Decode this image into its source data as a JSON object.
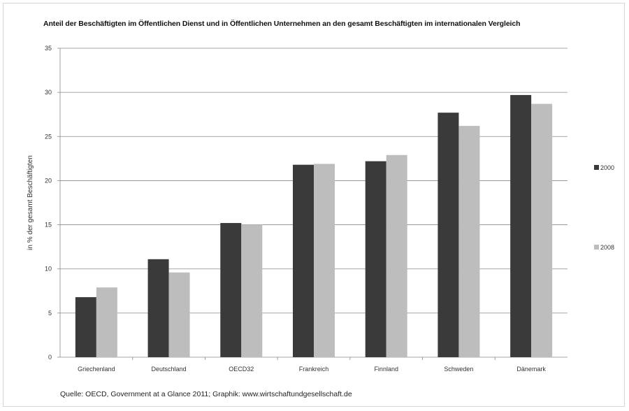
{
  "chart_data": {
    "type": "bar",
    "title": "Anteil der Beschäftigten im Öffentlichen Dienst und in Öffentlichen Unternehmen an den gesamt Beschäftigten im internationalen Vergleich",
    "xlabel": "",
    "ylabel": "in % der gesamt Beschäftigten",
    "ylim": [
      0,
      35
    ],
    "yticks": [
      "0",
      "5",
      "10",
      "15",
      "20",
      "25",
      "30",
      "35"
    ],
    "grid": true,
    "legend_position": "right",
    "categories": [
      "Griechenland",
      "Deutschland",
      "OECD32",
      "Frankreich",
      "Finnland",
      "Schweden",
      "Dänemark"
    ],
    "series": [
      {
        "name": "2000",
        "color": "#3a3a3a",
        "values": [
          6.8,
          11.1,
          15.2,
          21.8,
          22.2,
          27.7,
          29.7
        ]
      },
      {
        "name": "2008",
        "color": "#bdbdbd",
        "values": [
          7.9,
          9.6,
          15.0,
          21.9,
          22.9,
          26.2,
          28.7
        ]
      }
    ]
  },
  "source_note": "Quelle: OECD, Government at a Glance 2011;  Graphik: www.wirtschaftundgesellschaft.de"
}
